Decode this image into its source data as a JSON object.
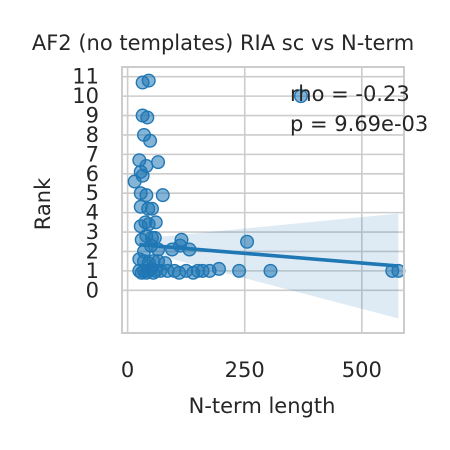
{
  "chart_data": {
    "type": "scatter",
    "title": "AF2 (no templates) RIA sc vs N-term",
    "xlabel": "N-term length",
    "ylabel": "Rank",
    "xlim": [
      -12,
      590
    ],
    "ylim": [
      -2.2,
      11.5
    ],
    "x_ticks": [
      0,
      250,
      500
    ],
    "x_tick_labels": [
      "0",
      "250",
      "500"
    ],
    "y_ticks": [
      0,
      1,
      2,
      3,
      4,
      5,
      6,
      7,
      8,
      9,
      10,
      11
    ],
    "y_tick_labels": [
      "0",
      "1",
      "2",
      "3",
      "4",
      "5",
      "6",
      "7",
      "8",
      "9",
      "10",
      "11"
    ],
    "grid": true,
    "annotation": {
      "line1": "rho = -0.23",
      "line2": "p = 9.69e-03"
    },
    "colors": {
      "points": "#1f77b4",
      "line": "#1f77b4",
      "band": "#1f77b4"
    },
    "points": [
      [
        32,
        10.7
      ],
      [
        45,
        10.8
      ],
      [
        370,
        10.0
      ],
      [
        32,
        9.0
      ],
      [
        42,
        8.9
      ],
      [
        35,
        8.0
      ],
      [
        48,
        7.7
      ],
      [
        25,
        6.7
      ],
      [
        40,
        6.4
      ],
      [
        65,
        6.6
      ],
      [
        28,
        6.1
      ],
      [
        15,
        5.6
      ],
      [
        32,
        5.9
      ],
      [
        28,
        5.0
      ],
      [
        40,
        4.9
      ],
      [
        75,
        4.9
      ],
      [
        28,
        4.3
      ],
      [
        44,
        4.2
      ],
      [
        52,
        4.2
      ],
      [
        28,
        3.3
      ],
      [
        38,
        3.5
      ],
      [
        45,
        3.4
      ],
      [
        60,
        3.5
      ],
      [
        30,
        2.6
      ],
      [
        40,
        2.8
      ],
      [
        52,
        2.7
      ],
      [
        58,
        2.7
      ],
      [
        115,
        2.6
      ],
      [
        255,
        2.5
      ],
      [
        35,
        2.0
      ],
      [
        50,
        2.3
      ],
      [
        65,
        2.1
      ],
      [
        95,
        2.1
      ],
      [
        112,
        2.3
      ],
      [
        132,
        2.1
      ],
      [
        25,
        1.6
      ],
      [
        35,
        1.5
      ],
      [
        45,
        1.4
      ],
      [
        55,
        1.5
      ],
      [
        65,
        1.5
      ],
      [
        80,
        1.4
      ],
      [
        25,
        1.0
      ],
      [
        30,
        0.9
      ],
      [
        35,
        1.0
      ],
      [
        40,
        0.9
      ],
      [
        45,
        1.0
      ],
      [
        50,
        1.1
      ],
      [
        55,
        0.9
      ],
      [
        60,
        1.0
      ],
      [
        70,
        1.0
      ],
      [
        85,
        1.0
      ],
      [
        100,
        1.0
      ],
      [
        110,
        0.9
      ],
      [
        125,
        1.0
      ],
      [
        140,
        0.9
      ],
      [
        150,
        1.0
      ],
      [
        160,
        1.0
      ],
      [
        175,
        1.0
      ],
      [
        195,
        1.1
      ],
      [
        238,
        1.0
      ],
      [
        305,
        1.0
      ],
      [
        565,
        1.0
      ],
      [
        578,
        1.0
      ]
    ],
    "regression": {
      "x": [
        25,
        578
      ],
      "y": [
        2.35,
        1.25
      ],
      "band_lower": [
        2.05,
        -1.45
      ],
      "band_upper": [
        2.65,
        3.95
      ]
    }
  }
}
